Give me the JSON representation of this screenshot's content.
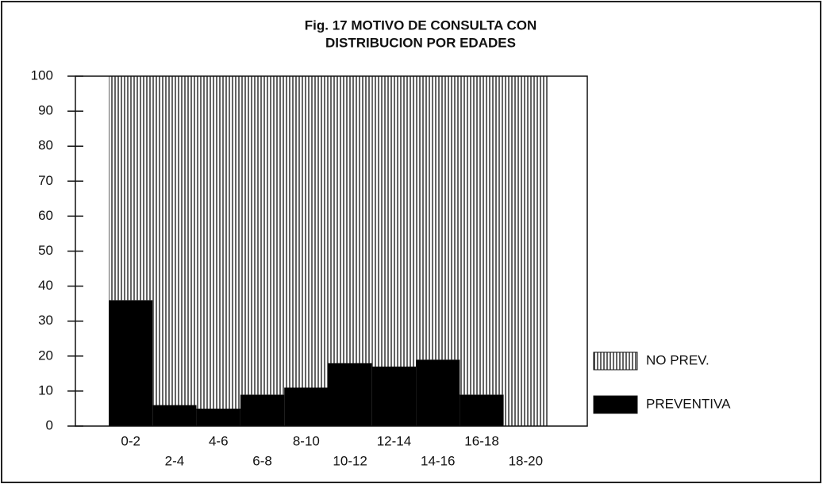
{
  "chart_data": {
    "type": "stacked_bar",
    "title": [
      "Fig. 17 MOTIVO DE CONSULTA CON",
      "DISTRIBUCION POR EDADES"
    ],
    "categories": [
      "0-2",
      "2-4",
      "4-6",
      "6-8",
      "8-10",
      "10-12",
      "12-14",
      "14-16",
      "16-18",
      "18-20"
    ],
    "series": [
      {
        "name": "PREVENTIVA",
        "color": "#000000",
        "values": [
          36,
          6,
          5,
          9,
          11,
          18,
          17,
          19,
          9,
          0
        ]
      },
      {
        "name": "NO PREV.",
        "color": "#ffffff",
        "values": [
          64,
          94,
          95,
          91,
          89,
          82,
          83,
          81,
          91,
          100
        ]
      }
    ],
    "ylim": [
      0,
      100
    ],
    "yticks": [
      0,
      10,
      20,
      30,
      40,
      50,
      60,
      70,
      80,
      90,
      100
    ],
    "legend": "right"
  }
}
